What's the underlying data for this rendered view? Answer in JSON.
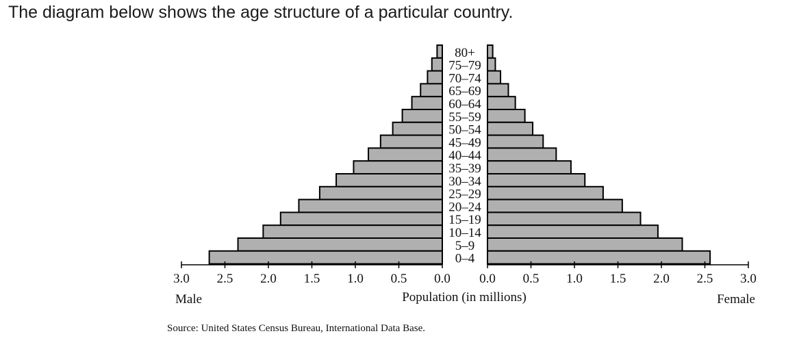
{
  "prompt_text": "The diagram below shows the age structure of a particular country.",
  "source_text": "Source:  United States Census Bureau, International Data Base.",
  "colors": {
    "bar_fill": "#b0b0b0",
    "bar_stroke": "#000000"
  },
  "chart_data": {
    "type": "bar",
    "orientation": "horizontal",
    "layout": "population-pyramid",
    "xlabel": "Population (in millions)",
    "left_side_label": "Male",
    "right_side_label": "Female",
    "categories": [
      "80+",
      "75–79",
      "70–74",
      "65–69",
      "60–64",
      "55–59",
      "50–54",
      "45–49",
      "40–44",
      "35–39",
      "30–34",
      "25–29",
      "20–24",
      "15–19",
      "10–14",
      "5–9",
      "0–4"
    ],
    "series": [
      {
        "name": "Male",
        "values": [
          0.06,
          0.12,
          0.17,
          0.25,
          0.35,
          0.46,
          0.57,
          0.71,
          0.85,
          1.02,
          1.22,
          1.41,
          1.65,
          1.86,
          2.06,
          2.35,
          2.68
        ]
      },
      {
        "name": "Female",
        "values": [
          0.06,
          0.09,
          0.15,
          0.24,
          0.32,
          0.43,
          0.52,
          0.64,
          0.79,
          0.96,
          1.12,
          1.33,
          1.55,
          1.76,
          1.96,
          2.24,
          2.56
        ]
      }
    ],
    "xlim": [
      0,
      3
    ],
    "tick_values": [
      3.0,
      2.5,
      2.0,
      1.5,
      1.0,
      0.5,
      0.0
    ],
    "tick_labels": [
      "3.0",
      "2.5",
      "2.0",
      "1.5",
      "1.0",
      "0.5",
      "0.0"
    ],
    "grid": false
  }
}
